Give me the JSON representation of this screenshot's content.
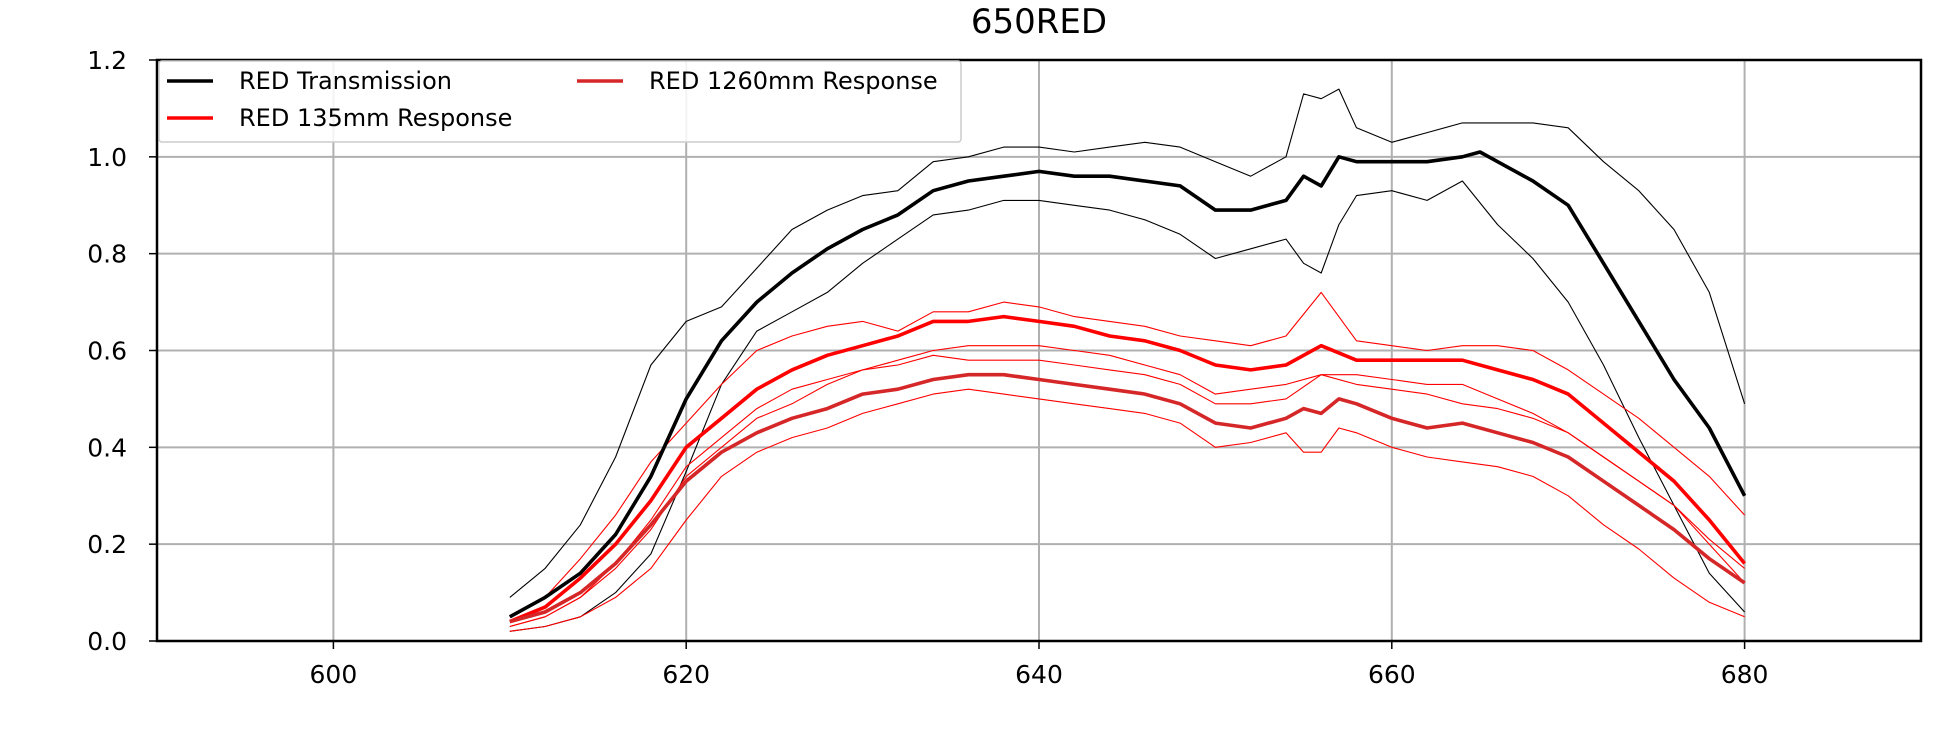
{
  "chart_data": {
    "type": "line",
    "title": "650RED",
    "xlabel": "",
    "ylabel": "",
    "xlim": [
      590,
      690
    ],
    "ylim": [
      0.0,
      1.2
    ],
    "x_ticks": [
      600,
      620,
      640,
      660,
      680
    ],
    "x_tick_labels": [
      "600",
      "620",
      "640",
      "660",
      "680"
    ],
    "y_ticks": [
      0.0,
      0.2,
      0.4,
      0.6,
      0.8,
      1.0,
      1.2
    ],
    "y_tick_labels": [
      "0.0",
      "0.2",
      "0.4",
      "0.6",
      "0.8",
      "1.0",
      "1.2"
    ],
    "grid": true,
    "legend_position": "top-left",
    "legend": [
      {
        "label": "RED Transmission",
        "color": "#000000"
      },
      {
        "label": "RED 1260mm Response",
        "color": "#d62728"
      },
      {
        "label": "RED 135mm Response",
        "color": "#ff0000"
      }
    ],
    "series": [
      {
        "name": "RED Transmission",
        "color": "#000000",
        "x": [
          610,
          612,
          614,
          616,
          618,
          620,
          622,
          624,
          626,
          628,
          630,
          632,
          634,
          636,
          638,
          640,
          642,
          644,
          646,
          648,
          650,
          652,
          654,
          655,
          656,
          657,
          658,
          660,
          662,
          664,
          665,
          666,
          668,
          670,
          672,
          674,
          676,
          678,
          680
        ],
        "y": [
          0.05,
          0.09,
          0.14,
          0.22,
          0.34,
          0.5,
          0.62,
          0.7,
          0.76,
          0.81,
          0.85,
          0.88,
          0.93,
          0.95,
          0.96,
          0.97,
          0.96,
          0.96,
          0.95,
          0.94,
          0.89,
          0.89,
          0.91,
          0.96,
          0.94,
          1.0,
          0.99,
          0.99,
          0.99,
          1.0,
          1.01,
          0.99,
          0.95,
          0.9,
          0.78,
          0.66,
          0.54,
          0.44,
          0.3
        ]
      },
      {
        "name": "RED 135mm Response",
        "color": "#ff0000",
        "x": [
          610,
          612,
          614,
          616,
          618,
          620,
          622,
          624,
          626,
          628,
          630,
          632,
          634,
          636,
          638,
          640,
          642,
          644,
          646,
          648,
          650,
          652,
          654,
          656,
          658,
          660,
          662,
          664,
          666,
          668,
          670,
          672,
          674,
          676,
          678,
          680
        ],
        "y": [
          0.04,
          0.07,
          0.13,
          0.2,
          0.29,
          0.4,
          0.46,
          0.52,
          0.56,
          0.59,
          0.61,
          0.63,
          0.66,
          0.66,
          0.67,
          0.66,
          0.65,
          0.63,
          0.62,
          0.6,
          0.57,
          0.56,
          0.57,
          0.61,
          0.58,
          0.58,
          0.58,
          0.58,
          0.56,
          0.54,
          0.51,
          0.45,
          0.39,
          0.33,
          0.25,
          0.16
        ]
      },
      {
        "name": "RED 1260mm Response",
        "color": "#d62728",
        "x": [
          610,
          612,
          614,
          616,
          618,
          620,
          622,
          624,
          626,
          628,
          630,
          632,
          634,
          636,
          638,
          640,
          642,
          644,
          646,
          648,
          650,
          652,
          654,
          655,
          656,
          657,
          658,
          660,
          662,
          664,
          666,
          668,
          670,
          672,
          674,
          676,
          678,
          680
        ],
        "y": [
          0.04,
          0.06,
          0.1,
          0.16,
          0.24,
          0.33,
          0.39,
          0.43,
          0.46,
          0.48,
          0.51,
          0.52,
          0.54,
          0.55,
          0.55,
          0.54,
          0.53,
          0.52,
          0.51,
          0.49,
          0.45,
          0.44,
          0.46,
          0.48,
          0.47,
          0.5,
          0.49,
          0.46,
          0.44,
          0.45,
          0.43,
          0.41,
          0.38,
          0.33,
          0.28,
          0.23,
          0.17,
          0.12
        ]
      }
    ],
    "envelope_lines": [
      {
        "color": "#000000",
        "x": [
          610,
          612,
          614,
          616,
          618,
          620,
          622,
          624,
          626,
          628,
          630,
          632,
          634,
          636,
          638,
          640,
          642,
          644,
          646,
          648,
          650,
          652,
          654,
          655,
          656,
          657,
          658,
          660,
          662,
          664,
          666,
          668,
          670,
          672,
          674,
          676,
          678,
          680
        ],
        "y": [
          0.09,
          0.15,
          0.24,
          0.38,
          0.57,
          0.66,
          0.69,
          0.77,
          0.85,
          0.89,
          0.92,
          0.93,
          0.99,
          1.0,
          1.02,
          1.02,
          1.01,
          1.02,
          1.03,
          1.02,
          0.99,
          0.96,
          1.0,
          1.13,
          1.12,
          1.14,
          1.06,
          1.03,
          1.05,
          1.07,
          1.07,
          1.07,
          1.06,
          0.99,
          0.93,
          0.85,
          0.72,
          0.49
        ]
      },
      {
        "color": "#000000",
        "x": [
          610,
          612,
          614,
          616,
          618,
          620,
          622,
          624,
          626,
          628,
          630,
          632,
          634,
          636,
          638,
          640,
          642,
          644,
          646,
          648,
          650,
          652,
          654,
          655,
          656,
          657,
          658,
          660,
          662,
          664,
          666,
          668,
          670,
          672,
          674,
          676,
          678,
          680
        ],
        "y": [
          0.02,
          0.03,
          0.05,
          0.1,
          0.18,
          0.35,
          0.53,
          0.64,
          0.68,
          0.72,
          0.78,
          0.83,
          0.88,
          0.89,
          0.91,
          0.91,
          0.9,
          0.89,
          0.87,
          0.84,
          0.79,
          0.81,
          0.83,
          0.78,
          0.76,
          0.86,
          0.92,
          0.93,
          0.91,
          0.95,
          0.86,
          0.79,
          0.7,
          0.57,
          0.42,
          0.28,
          0.14,
          0.06
        ]
      },
      {
        "color": "#ff0000",
        "x": [
          610,
          612,
          614,
          616,
          618,
          620,
          622,
          624,
          626,
          628,
          630,
          632,
          634,
          636,
          638,
          640,
          642,
          644,
          646,
          648,
          650,
          652,
          654,
          656,
          658,
          660,
          662,
          664,
          666,
          668,
          670,
          672,
          674,
          676,
          678,
          680
        ],
        "y": [
          0.05,
          0.09,
          0.17,
          0.26,
          0.37,
          0.45,
          0.53,
          0.6,
          0.63,
          0.65,
          0.66,
          0.64,
          0.68,
          0.68,
          0.7,
          0.69,
          0.67,
          0.66,
          0.65,
          0.63,
          0.62,
          0.61,
          0.63,
          0.72,
          0.62,
          0.61,
          0.6,
          0.61,
          0.61,
          0.6,
          0.56,
          0.51,
          0.46,
          0.4,
          0.34,
          0.26
        ]
      },
      {
        "color": "#ff0000",
        "x": [
          610,
          612,
          614,
          616,
          618,
          620,
          622,
          624,
          626,
          628,
          630,
          632,
          634,
          636,
          638,
          640,
          642,
          644,
          646,
          648,
          650,
          652,
          654,
          656,
          658,
          660,
          662,
          664,
          666,
          668,
          670,
          672,
          674,
          676,
          678,
          680
        ],
        "y": [
          0.03,
          0.05,
          0.09,
          0.15,
          0.23,
          0.34,
          0.4,
          0.46,
          0.49,
          0.53,
          0.56,
          0.58,
          0.6,
          0.61,
          0.61,
          0.61,
          0.6,
          0.59,
          0.57,
          0.55,
          0.51,
          0.52,
          0.53,
          0.55,
          0.55,
          0.54,
          0.53,
          0.53,
          0.5,
          0.47,
          0.43,
          0.38,
          0.33,
          0.28,
          0.2,
          0.12
        ]
      },
      {
        "color": "#ff0000",
        "x": [
          610,
          612,
          614,
          616,
          618,
          620,
          622,
          624,
          626,
          628,
          630,
          632,
          634,
          636,
          638,
          640,
          642,
          644,
          646,
          648,
          650,
          652,
          654,
          656,
          658,
          660,
          662,
          664,
          666,
          668,
          670,
          672,
          674,
          676,
          678,
          680
        ],
        "y": [
          0.03,
          0.05,
          0.09,
          0.16,
          0.25,
          0.36,
          0.42,
          0.48,
          0.52,
          0.54,
          0.56,
          0.57,
          0.59,
          0.58,
          0.58,
          0.58,
          0.57,
          0.56,
          0.55,
          0.53,
          0.49,
          0.49,
          0.5,
          0.55,
          0.53,
          0.52,
          0.51,
          0.49,
          0.48,
          0.46,
          0.43,
          0.38,
          0.33,
          0.28,
          0.21,
          0.15
        ]
      },
      {
        "color": "#ff0000",
        "x": [
          610,
          612,
          614,
          616,
          618,
          620,
          622,
          624,
          626,
          628,
          630,
          632,
          634,
          636,
          638,
          640,
          642,
          644,
          646,
          648,
          650,
          652,
          654,
          655,
          656,
          657,
          658,
          660,
          662,
          664,
          666,
          668,
          670,
          672,
          674,
          676,
          678,
          680
        ],
        "y": [
          0.02,
          0.03,
          0.05,
          0.09,
          0.15,
          0.25,
          0.34,
          0.39,
          0.42,
          0.44,
          0.47,
          0.49,
          0.51,
          0.52,
          0.51,
          0.5,
          0.49,
          0.48,
          0.47,
          0.45,
          0.4,
          0.41,
          0.43,
          0.39,
          0.39,
          0.44,
          0.43,
          0.4,
          0.38,
          0.37,
          0.36,
          0.34,
          0.3,
          0.24,
          0.19,
          0.13,
          0.08,
          0.05
        ]
      }
    ]
  }
}
